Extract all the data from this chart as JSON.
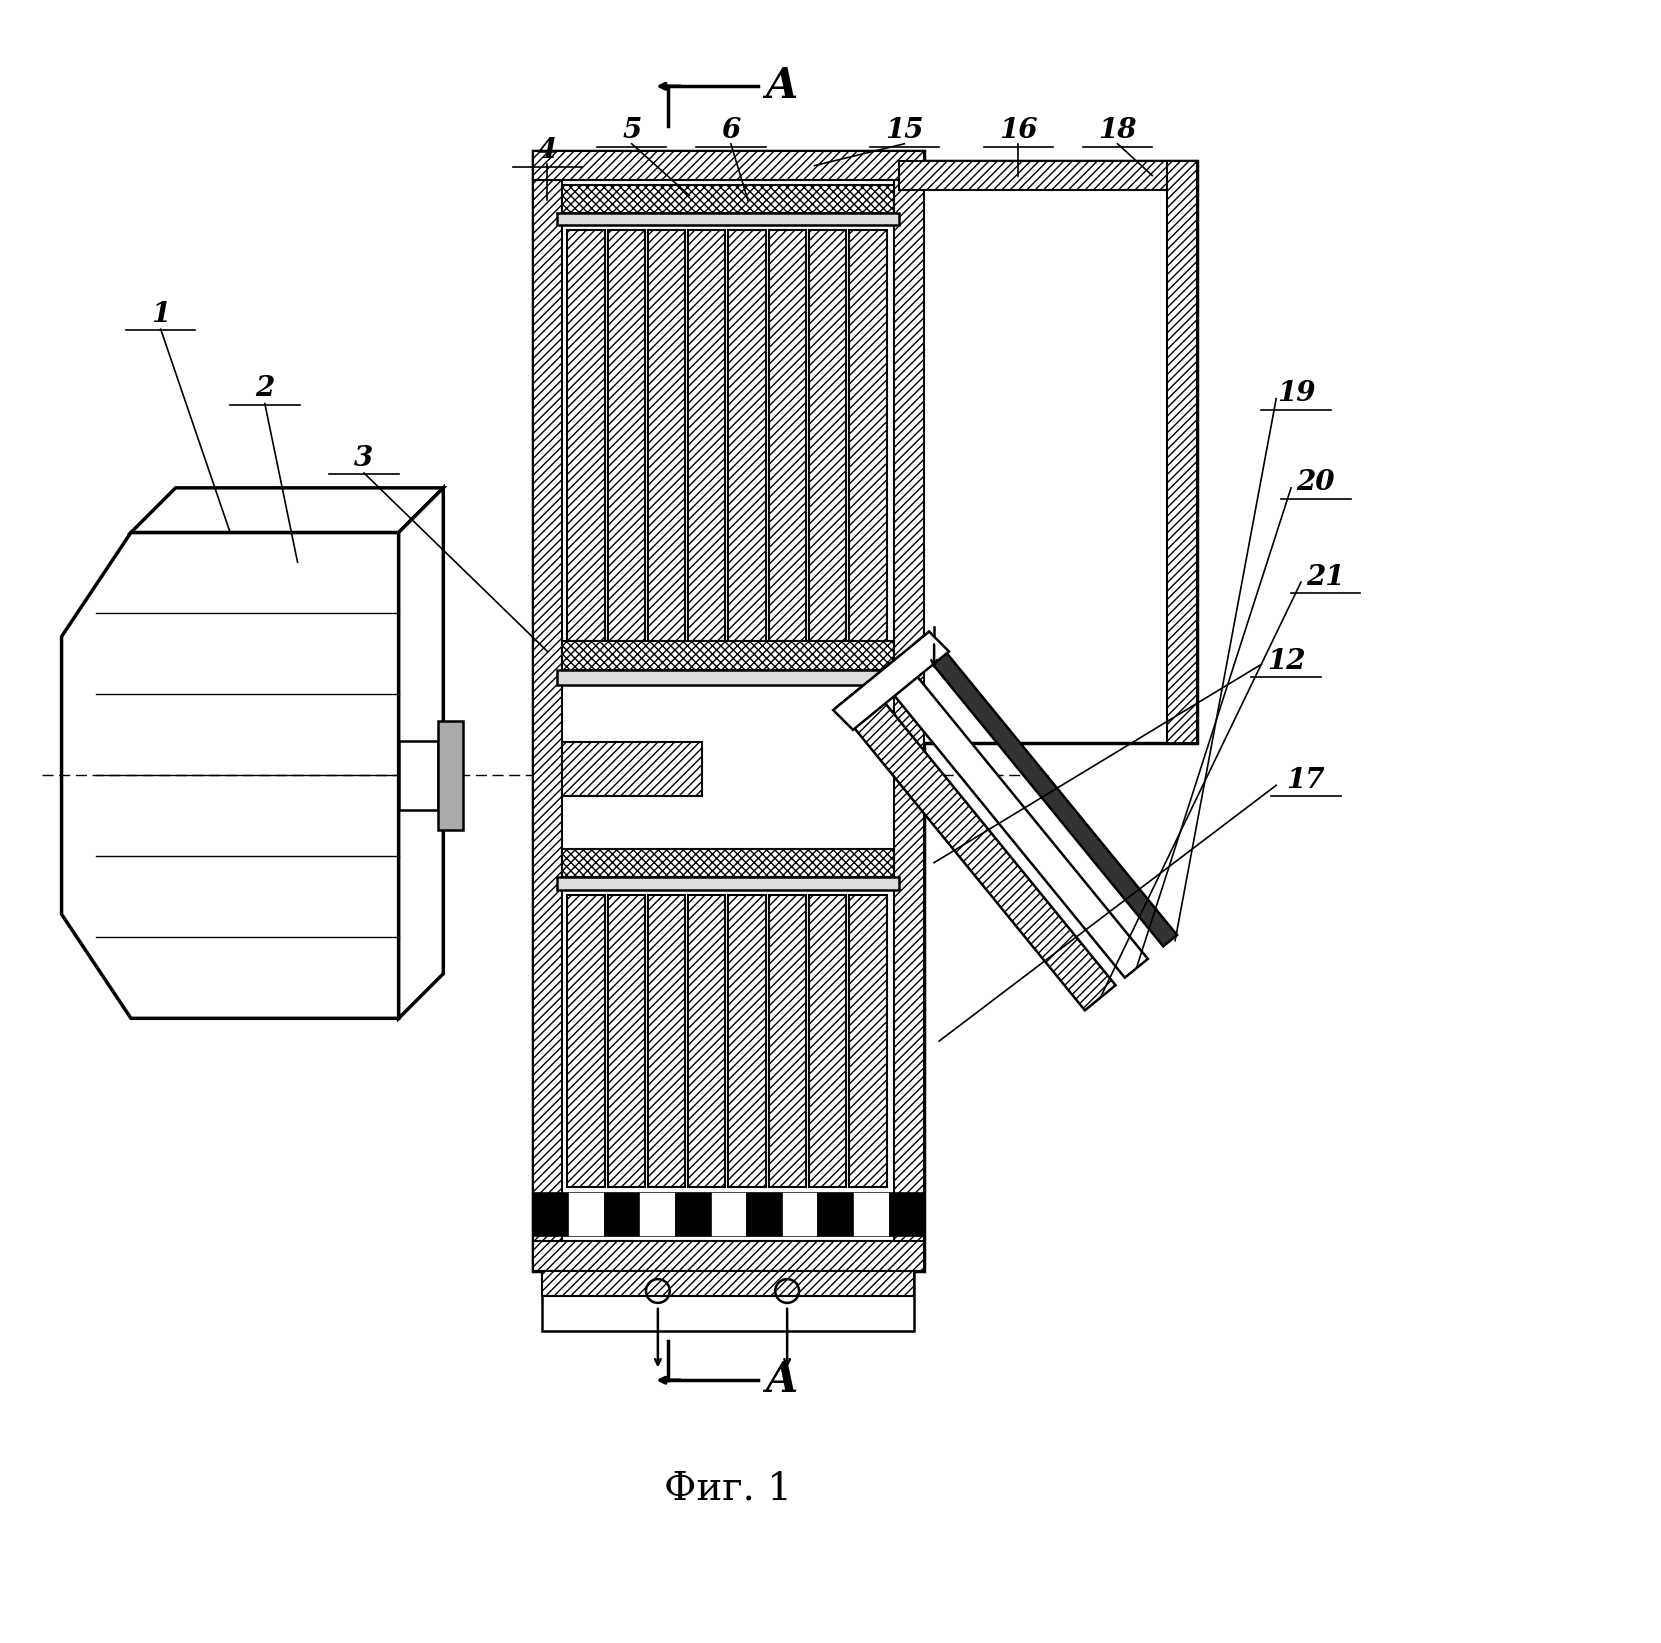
{
  "fig_width": 16.61,
  "fig_height": 16.43,
  "background_color": "#ffffff",
  "caption": "Фиг. 1",
  "arrow_A_label": "A",
  "label_fontsize": 20,
  "caption_fontsize": 28
}
